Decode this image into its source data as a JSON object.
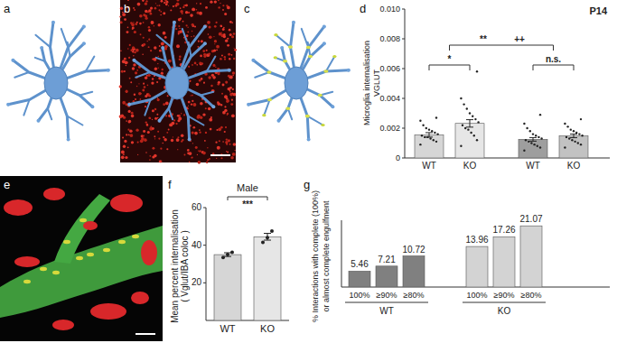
{
  "panel_labels": [
    "a",
    "b",
    "c",
    "d",
    "e",
    "f",
    "g"
  ],
  "chart_data": [
    {
      "type": "bar",
      "title": "P14",
      "y_label": [
        "Microglia internalisation",
        "VGLUT"
      ],
      "categories": [
        "WT",
        "KO",
        "WT",
        "KO"
      ],
      "values": [
        0.00155,
        0.00232,
        0.00125,
        0.00148
      ],
      "errors": [
        0.00015,
        0.00025,
        0.00012,
        0.00012
      ],
      "points": [
        [
          0.0009,
          0.0011,
          0.0012,
          0.0013,
          0.0014,
          0.0014,
          0.0015,
          0.0016,
          0.0017,
          0.0018,
          0.0019,
          0.002,
          0.0022,
          0.0025,
          0.0027
        ],
        [
          0.0008,
          0.0012,
          0.0015,
          0.0017,
          0.0019,
          0.002,
          0.0022,
          0.0024,
          0.0026,
          0.0028,
          0.003,
          0.0033,
          0.0036,
          0.004,
          0.0058
        ],
        [
          0.0005,
          0.0007,
          0.0008,
          0.0009,
          0.001,
          0.0011,
          0.0012,
          0.0013,
          0.0014,
          0.0015,
          0.0016,
          0.0018,
          0.002,
          0.0023,
          0.0029
        ],
        [
          0.0007,
          0.0009,
          0.001,
          0.0011,
          0.0012,
          0.0013,
          0.0014,
          0.0015,
          0.0016,
          0.0017,
          0.0018,
          0.0019,
          0.0021,
          0.0023,
          0.0026
        ]
      ],
      "colors": [
        "#d6d6d6",
        "#e6e6e6",
        "#9e9e9e",
        "#c2c2c2"
      ],
      "ylim": [
        0,
        0.01
      ],
      "yticks": [
        0,
        0.002,
        0.004,
        0.006,
        0.008,
        {
          "value": 0.01,
          "label": "0.010"
        }
      ],
      "comparisons": [
        {
          "label": "*",
          "bars": [
            0,
            1
          ]
        },
        {
          "label": "n.s.",
          "bars": [
            2,
            3
          ]
        },
        {
          "label": "**",
          "bars": [
            0,
            1,
            2,
            3
          ]
        },
        {
          "label": "++",
          "bars": [
            0,
            1,
            2,
            3
          ]
        }
      ]
    },
    {
      "type": "bar",
      "title": "Male",
      "y_label": [
        "Mean percent internalisation",
        "( Vglut/IBA coloc )"
      ],
      "categories": [
        "WT",
        "KO"
      ],
      "values": [
        35,
        44.5
      ],
      "errors": [
        1,
        1.8
      ],
      "points": [
        [
          33.5,
          35,
          36.2
        ],
        [
          41.5,
          44,
          47.5
        ]
      ],
      "colors": [
        "#d6d6d6",
        "#e6e6e6"
      ],
      "ylim": [
        0,
        60
      ],
      "yticks": [
        20,
        40,
        60
      ],
      "comparisons": [
        {
          "label": "***",
          "bars": [
            0,
            1
          ]
        }
      ]
    },
    {
      "type": "bar",
      "y_label": [
        "% Interactions with complete (100%)",
        "or almost complete engulfment"
      ],
      "categories": [
        "100%",
        "≥90%",
        "≥80%",
        "100%",
        "≥90%",
        "≥80%"
      ],
      "groups": [
        {
          "label": "WT",
          "bars": [
            0,
            1,
            2
          ]
        },
        {
          "label": "KO",
          "bars": [
            3,
            4,
            5
          ]
        }
      ],
      "values": [
        5.46,
        7.21,
        10.72,
        13.96,
        17.26,
        21.07
      ],
      "colors": [
        "#808080",
        "#808080",
        "#808080",
        "#d3d3d3",
        "#d3d3d3",
        "#d3d3d3"
      ],
      "ylim": [
        0,
        23
      ],
      "data_labels": true,
      "tick_labels": "x"
    }
  ]
}
